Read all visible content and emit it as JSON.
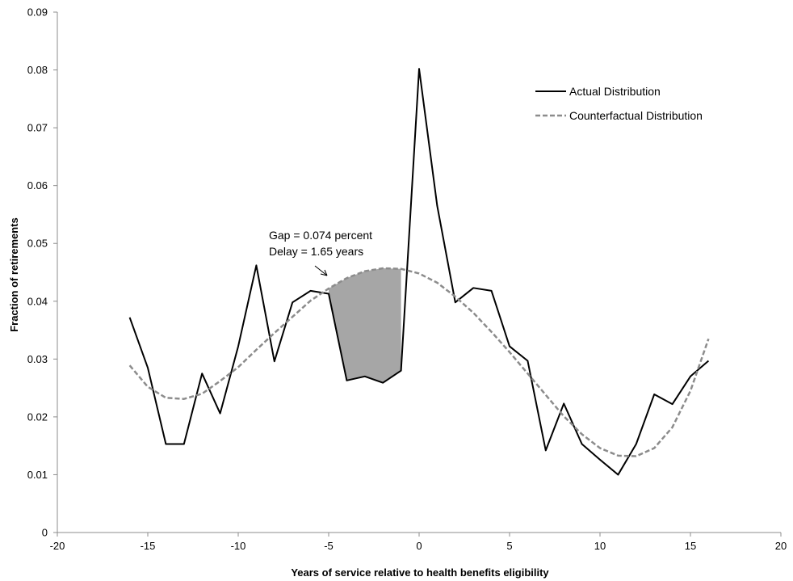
{
  "chart_data": {
    "type": "line",
    "title": "",
    "xlabel": "Years of service relative to health benefits eligibility",
    "ylabel": "Fraction of retirements",
    "xlim": [
      -20,
      20
    ],
    "ylim": [
      0,
      0.09
    ],
    "x_ticks": [
      -20,
      -15,
      -10,
      -5,
      0,
      5,
      10,
      15,
      20
    ],
    "y_ticks": [
      0,
      0.01,
      0.02,
      0.03,
      0.04,
      0.05,
      0.06,
      0.07,
      0.08,
      0.09
    ],
    "x_tick_labels": [
      "-20",
      "-15",
      "-10",
      "-5",
      "0",
      "5",
      "10",
      "15",
      "20"
    ],
    "y_tick_labels": [
      "0",
      "0.01",
      "0.02",
      "0.03",
      "0.04",
      "0.05",
      "0.06",
      "0.07",
      "0.08",
      "0.09"
    ],
    "grid": false,
    "legend_position": "top-right",
    "series": [
      {
        "name": "Actual Distribution",
        "color": "#000000",
        "style": "solid",
        "x": [
          -16,
          -15,
          -14,
          -13,
          -12,
          -11,
          -10,
          -9,
          -8,
          -7,
          -6,
          -5,
          -4,
          -3,
          -2,
          -1,
          0,
          1,
          2,
          3,
          4,
          5,
          6,
          7,
          8,
          9,
          10,
          11,
          12,
          13,
          14,
          15,
          16
        ],
        "values": [
          0.0372,
          0.0285,
          0.0153,
          0.0153,
          0.0275,
          0.0206,
          0.0322,
          0.0462,
          0.0296,
          0.0398,
          0.0418,
          0.0413,
          0.0263,
          0.027,
          0.0259,
          0.028,
          0.0802,
          0.0565,
          0.0398,
          0.0423,
          0.0418,
          0.0322,
          0.0297,
          0.0142,
          0.0223,
          0.0153,
          0.0126,
          0.01,
          0.0153,
          0.0239,
          0.0222,
          0.027,
          0.0297
        ]
      },
      {
        "name": "Counterfactual Distribution",
        "color": "#8c8c8c",
        "style": "dashed",
        "x": [
          -16,
          -15,
          -14,
          -13,
          -12,
          -11,
          -10,
          -9,
          -8,
          -7,
          -6,
          -5,
          -4,
          -3,
          -2,
          -1,
          0,
          1,
          2,
          3,
          4,
          5,
          6,
          7,
          8,
          9,
          10,
          11,
          12,
          13,
          14,
          15,
          16
        ],
        "values": [
          0.0289,
          0.0252,
          0.0233,
          0.0231,
          0.024,
          0.0262,
          0.0286,
          0.0316,
          0.0345,
          0.0373,
          0.0401,
          0.0422,
          0.044,
          0.0452,
          0.0457,
          0.0456,
          0.0448,
          0.0432,
          0.0408,
          0.038,
          0.0347,
          0.0312,
          0.0275,
          0.0238,
          0.0201,
          0.017,
          0.0146,
          0.0133,
          0.0132,
          0.0146,
          0.0182,
          0.0245,
          0.0335
        ]
      }
    ],
    "shaded_region": {
      "x_from": -5,
      "x_to": -1,
      "color": "#a6a6a6"
    },
    "annotations": [
      {
        "text": "Gap = 0.074 percent"
      },
      {
        "text": "Delay = 1.65 years"
      }
    ]
  }
}
